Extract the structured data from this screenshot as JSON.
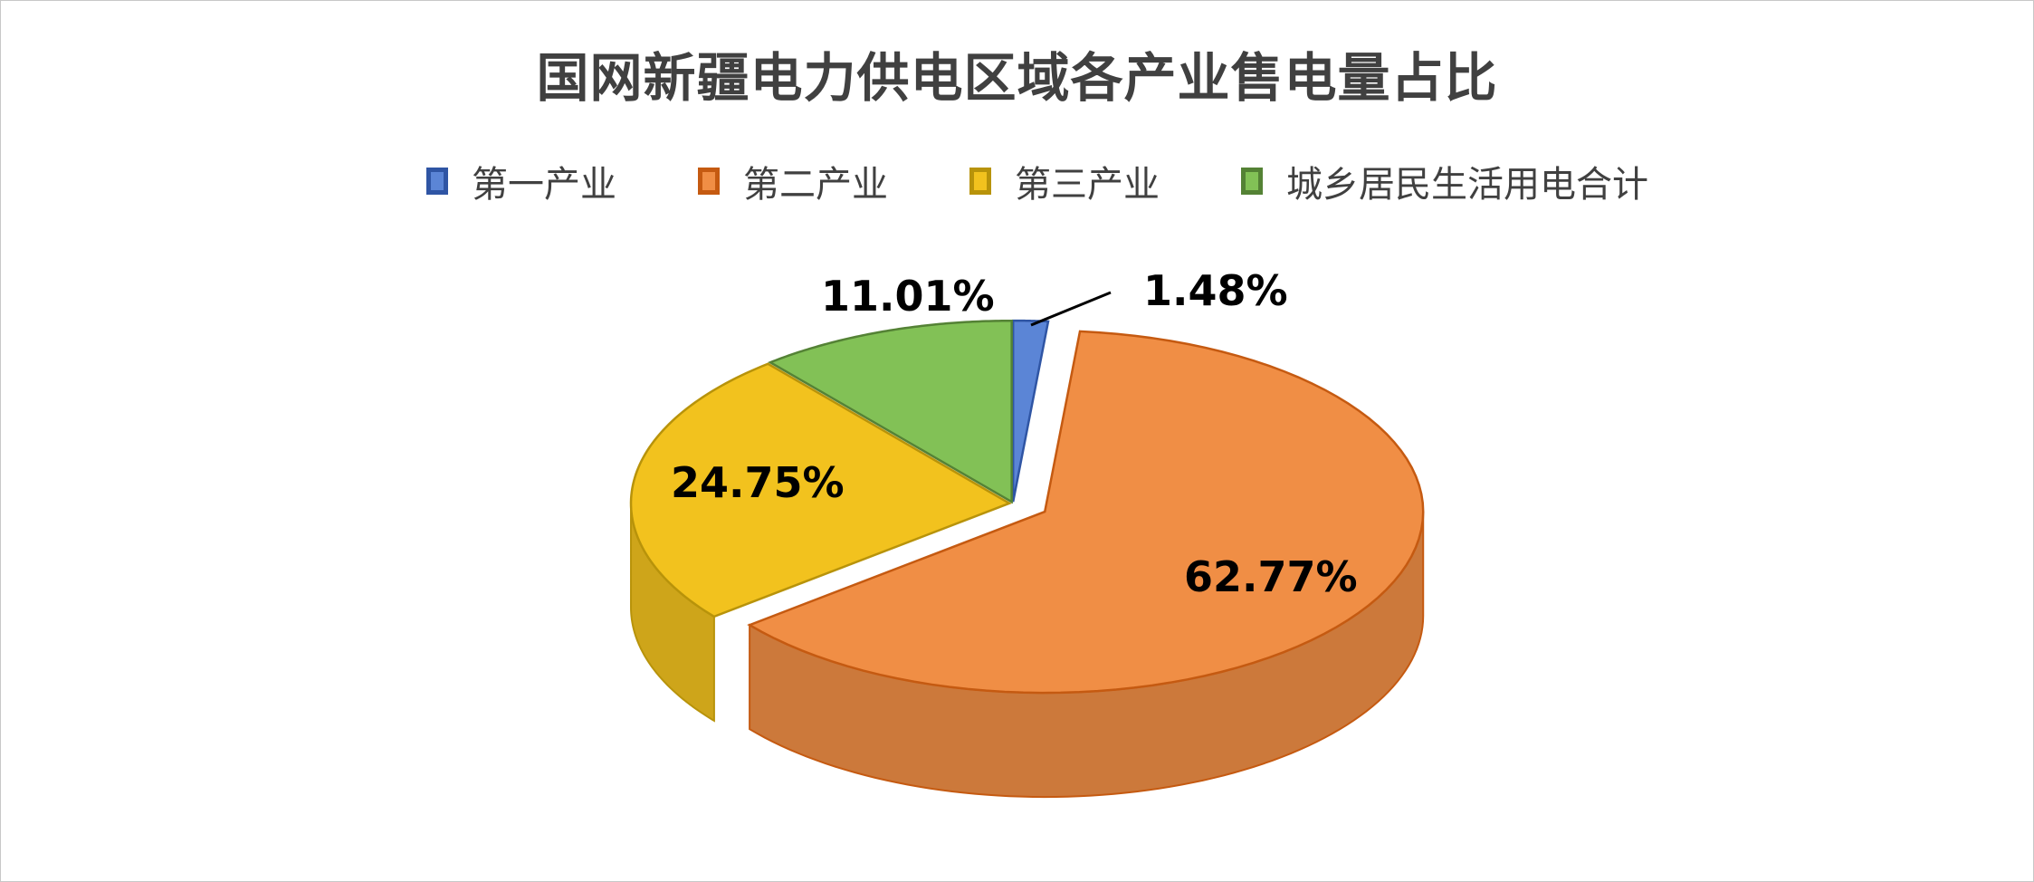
{
  "chart_data": {
    "type": "pie",
    "title": "国网新疆电力供电区域各产业售电量占比",
    "legend_position": "top",
    "categories": [
      "第一产业",
      "第二产业",
      "第三产业",
      "城乡居民生活用电合计"
    ],
    "values": [
      1.48,
      62.77,
      24.75,
      11.01
    ],
    "data_labels": [
      "1.48%",
      "62.77%",
      "24.75%",
      "11.01%"
    ],
    "colors": [
      "#5b85d6",
      "#f08e45",
      "#f2c21e",
      "#82c156"
    ],
    "border_colors": [
      "#2f55a4",
      "#c55a11",
      "#b8930a",
      "#548235"
    ],
    "exploded": [
      "第二产业"
    ],
    "style": "3d"
  }
}
